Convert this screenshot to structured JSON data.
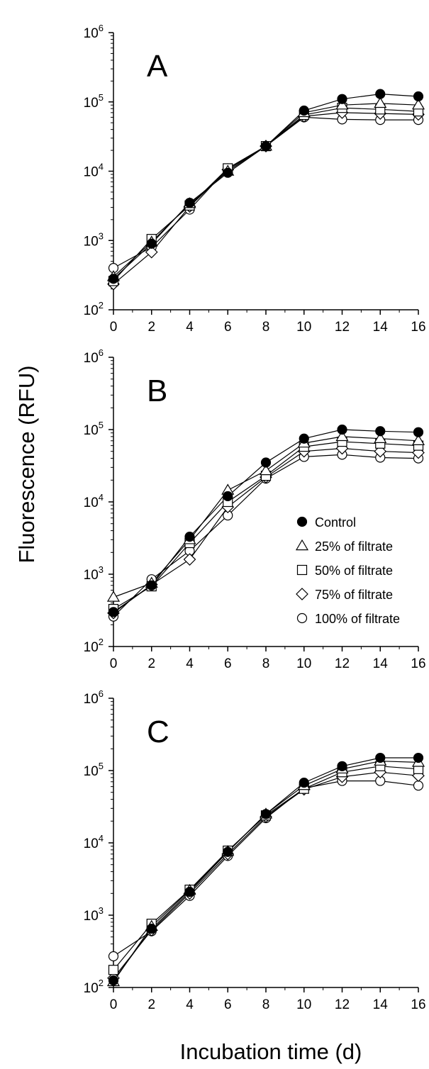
{
  "figure": {
    "ylabel": "Fluorescence (RFU)",
    "xlabel": "Incubation time (d)"
  },
  "series_styles": {
    "Control": {
      "marker": "circle",
      "fill": "#000000"
    },
    "25% of filtrate": {
      "marker": "triangle",
      "fill": "#ffffff"
    },
    "50% of filtrate": {
      "marker": "square",
      "fill": "#ffffff"
    },
    "75% of filtrate": {
      "marker": "diamond",
      "fill": "#ffffff"
    },
    "100% of filtrate": {
      "marker": "circle",
      "fill": "#ffffff"
    }
  },
  "chart_data": [
    {
      "type": "line",
      "panel": "A",
      "y_scale": "log",
      "x": [
        0,
        2,
        4,
        6,
        8,
        10,
        12,
        14,
        16
      ],
      "xlim": [
        0,
        16
      ],
      "ylim": [
        100,
        1000000
      ],
      "x_ticks": [
        "0",
        "2",
        "4",
        "6",
        "8",
        "10",
        "12",
        "14",
        "16"
      ],
      "legend": false,
      "series": [
        {
          "name": "Control",
          "values": [
            280,
            900,
            3500,
            9500,
            23000,
            75000,
            110000,
            130000,
            120000
          ]
        },
        {
          "name": "25% of filtrate",
          "values": [
            300,
            950,
            3400,
            10000,
            23000,
            70000,
            90000,
            95000,
            90000
          ]
        },
        {
          "name": "50% of filtrate",
          "values": [
            260,
            1050,
            3200,
            11000,
            23000,
            65000,
            82000,
            78000,
            73000
          ]
        },
        {
          "name": "75% of filtrate",
          "values": [
            235,
            680,
            3100,
            10500,
            23000,
            62000,
            70000,
            68000,
            66000
          ]
        },
        {
          "name": "100% of filtrate",
          "values": [
            400,
            800,
            2800,
            11000,
            23000,
            60000,
            56000,
            55000,
            55000
          ]
        }
      ]
    },
    {
      "type": "line",
      "panel": "B",
      "y_scale": "log",
      "x": [
        0,
        2,
        4,
        6,
        8,
        10,
        12,
        14,
        16
      ],
      "xlim": [
        0,
        16
      ],
      "ylim": [
        100,
        1000000
      ],
      "x_ticks": [
        "0",
        "2",
        "4",
        "6",
        "8",
        "10",
        "12",
        "14",
        "16"
      ],
      "legend": true,
      "legend_position": "right-middle",
      "series": [
        {
          "name": "Control",
          "values": [
            300,
            700,
            3300,
            12000,
            35000,
            75000,
            100000,
            95000,
            92000
          ]
        },
        {
          "name": "25% of filtrate",
          "values": [
            480,
            750,
            3000,
            14500,
            27000,
            65000,
            80000,
            75000,
            70000
          ]
        },
        {
          "name": "50% of filtrate",
          "values": [
            330,
            680,
            2700,
            10000,
            23000,
            58000,
            68000,
            64000,
            60000
          ]
        },
        {
          "name": "75% of filtrate",
          "values": [
            290,
            720,
            1600,
            8500,
            22000,
            50000,
            55000,
            50000,
            48000
          ]
        },
        {
          "name": "100% of filtrate",
          "values": [
            260,
            850,
            2100,
            6500,
            21000,
            42000,
            45000,
            41000,
            40000
          ]
        }
      ]
    },
    {
      "type": "line",
      "panel": "C",
      "y_scale": "log",
      "x": [
        0,
        2,
        4,
        6,
        8,
        10,
        12,
        14,
        16
      ],
      "xlim": [
        0,
        16
      ],
      "ylim": [
        100,
        1000000
      ],
      "x_ticks": [
        "0",
        "2",
        "4",
        "6",
        "8",
        "10",
        "12",
        "14",
        "16"
      ],
      "legend": false,
      "series": [
        {
          "name": "Control",
          "values": [
            125,
            650,
            2100,
            7500,
            25000,
            68000,
            115000,
            150000,
            150000
          ]
        },
        {
          "name": "25% of filtrate",
          "values": [
            120,
            700,
            2200,
            7600,
            25000,
            62000,
            105000,
            135000,
            130000
          ]
        },
        {
          "name": "50% of filtrate",
          "values": [
            175,
            760,
            2250,
            7800,
            24000,
            56000,
            95000,
            115000,
            105000
          ]
        },
        {
          "name": "75% of filtrate",
          "values": [
            135,
            620,
            2000,
            7000,
            23000,
            55000,
            82000,
            95000,
            85000
          ]
        },
        {
          "name": "100% of filtrate",
          "values": [
            270,
            600,
            1850,
            6600,
            22000,
            57000,
            72000,
            72000,
            62000
          ]
        }
      ]
    }
  ]
}
